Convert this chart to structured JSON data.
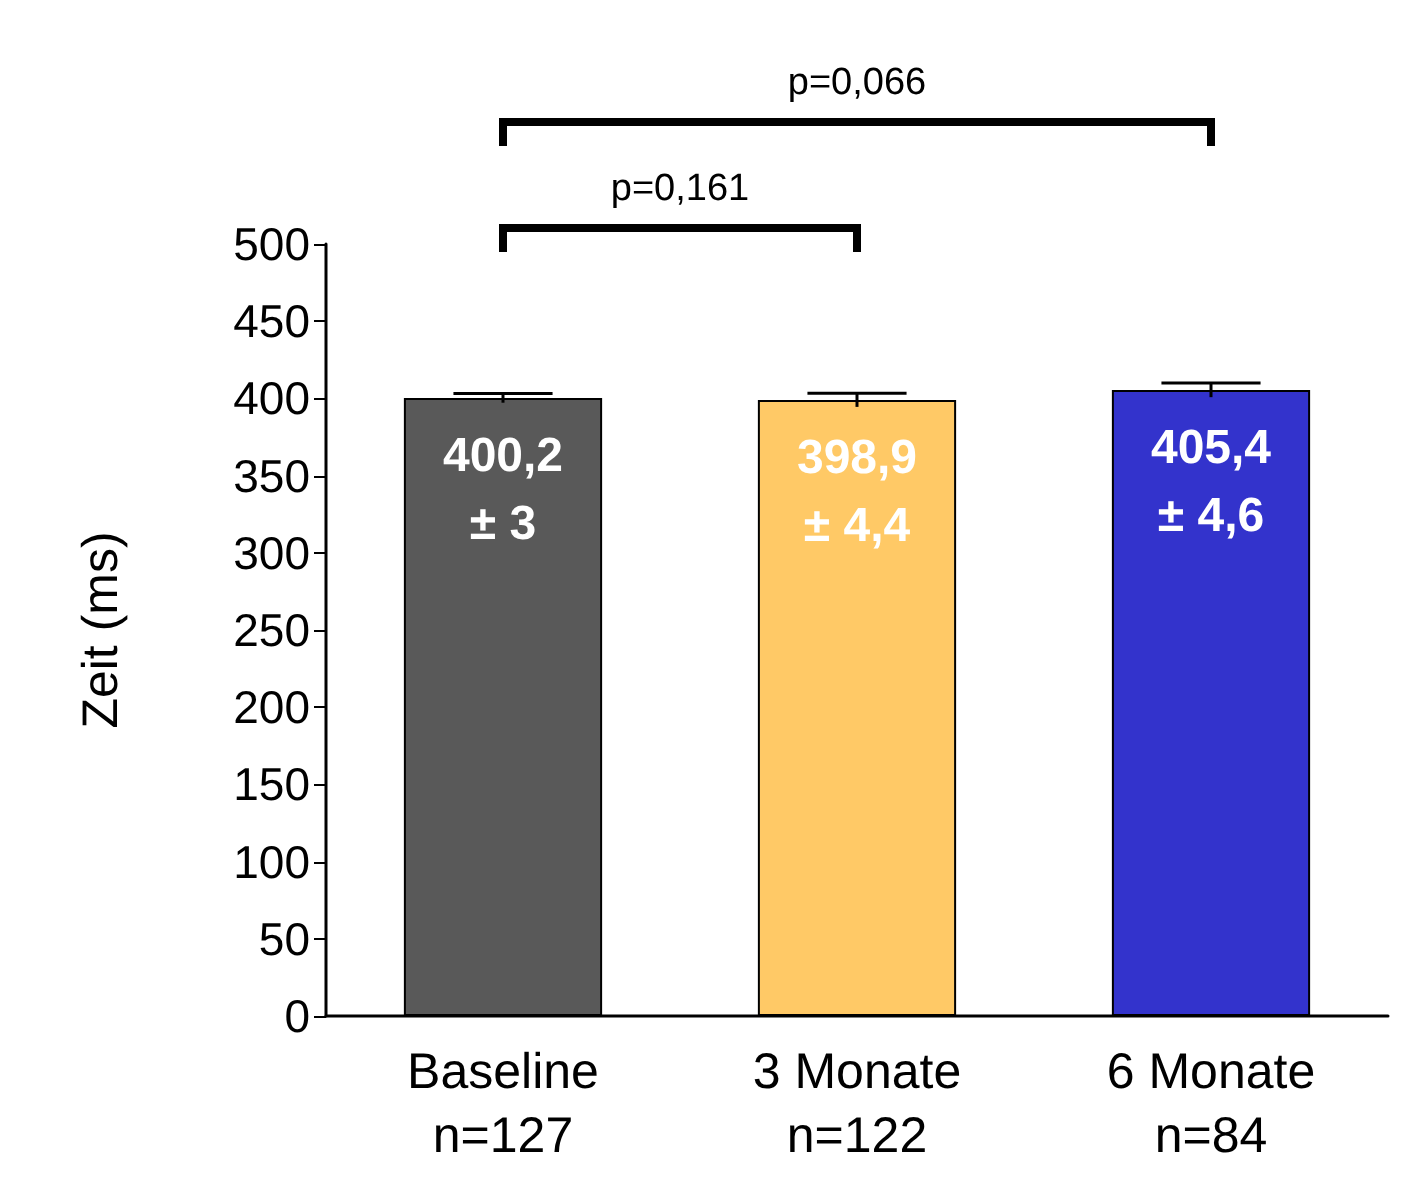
{
  "chart_data": {
    "type": "bar",
    "ylabel": "Zeit (ms)",
    "categories": [
      "Baseline\nn=127",
      "3 Monate\nn=122",
      "6 Monate\nn=84"
    ],
    "values": [
      400.2,
      398.9,
      405.4
    ],
    "colors": [
      "#595959",
      "#ffc966",
      "#3333cc"
    ],
    "errors": [
      3,
      4.4,
      4.6
    ],
    "value_labels": [
      "400,2\n± 3",
      "398,9\n± 4,4",
      "405,4\n± 4,6"
    ],
    "ylim": [
      0,
      500
    ],
    "yticks": [
      0,
      50,
      100,
      150,
      200,
      250,
      300,
      350,
      400,
      450,
      500
    ],
    "grid": false,
    "annotations": [
      "p=0,161",
      "p=0,066"
    ]
  }
}
